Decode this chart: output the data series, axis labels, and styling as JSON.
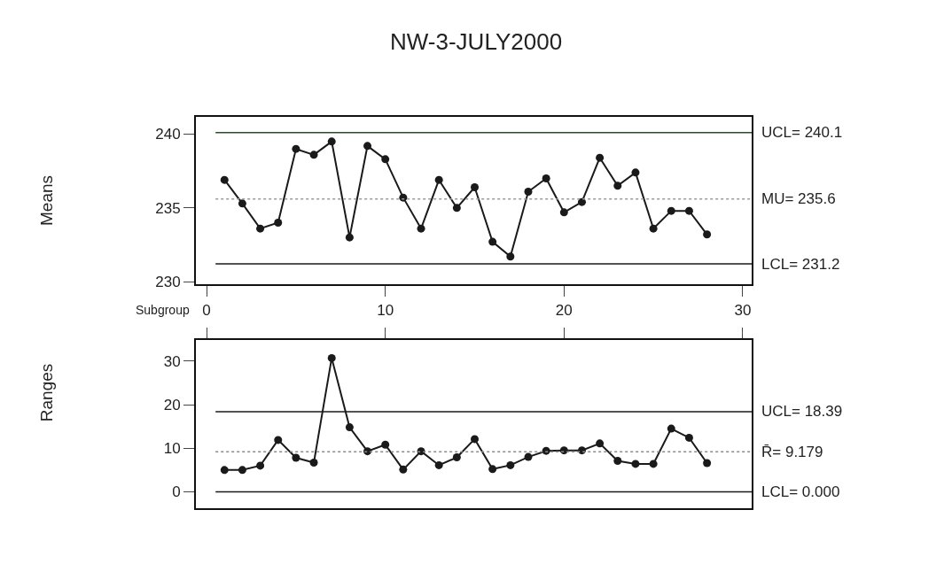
{
  "chart_data": [
    {
      "type": "line",
      "title": "NW-3-JULY2000",
      "xlabel": "Subgroup",
      "ylabel": "Means",
      "x": [
        1,
        2,
        3,
        4,
        5,
        6,
        7,
        8,
        9,
        10,
        11,
        12,
        13,
        14,
        15,
        16,
        17,
        18,
        19,
        20,
        21,
        22,
        23,
        24,
        25,
        26,
        27,
        28
      ],
      "series": [
        {
          "color": "#1a1a1a",
          "values": [
            236.9,
            235.3,
            233.6,
            234.0,
            239.0,
            238.6,
            239.5,
            233.0,
            239.2,
            238.3,
            235.7,
            233.6,
            236.9,
            235.0,
            236.4,
            232.7,
            231.7,
            236.1,
            237.0,
            234.7,
            235.4,
            238.4,
            236.5,
            237.4,
            233.6,
            234.8,
            234.8,
            233.2
          ]
        }
      ],
      "xlim": [
        -0.6,
        30.5
      ],
      "xticks": [
        0,
        10,
        20,
        30
      ],
      "ylim": [
        229.8,
        241.2
      ],
      "yticks": [
        230,
        235,
        240
      ],
      "ref_lines": [
        {
          "axis": "y",
          "value": 240.1,
          "label": "UCL= 240.1",
          "color": "#2e4a2e",
          "line_style": "solid"
        },
        {
          "axis": "y",
          "value": 235.6,
          "label": "MU= 235.6",
          "color": "#9a9a9a",
          "line_style": "dotted"
        },
        {
          "axis": "y",
          "value": 231.2,
          "label": "LCL= 231.2",
          "color": "#1a1a1a",
          "line_style": "solid"
        }
      ],
      "marker": "circle",
      "line_style": "solid"
    },
    {
      "type": "line",
      "ylabel": "Ranges",
      "x": [
        1,
        2,
        3,
        4,
        5,
        6,
        7,
        8,
        9,
        10,
        11,
        12,
        13,
        14,
        15,
        16,
        17,
        18,
        19,
        20,
        21,
        22,
        23,
        24,
        25,
        26,
        27,
        28
      ],
      "series": [
        {
          "color": "#1a1a1a",
          "values": [
            5.0,
            5.0,
            6.0,
            11.9,
            7.8,
            6.7,
            30.7,
            14.8,
            9.3,
            10.8,
            5.1,
            9.3,
            6.1,
            7.9,
            12.1,
            5.2,
            6.1,
            8.0,
            9.4,
            9.5,
            9.5,
            11.1,
            7.1,
            6.4,
            6.4,
            14.5,
            12.4,
            6.6
          ]
        }
      ],
      "xlim": [
        -0.6,
        30.5
      ],
      "xticks": [
        {
          "value": 0,
          "label": null
        },
        {
          "value": 10,
          "label": null
        },
        {
          "value": 20,
          "label": null
        },
        {
          "value": 30,
          "label": null
        }
      ],
      "ylim": [
        -3.7,
        34.9
      ],
      "yticks": [
        0,
        10,
        20,
        30
      ],
      "tick_labels": "y",
      "ref_lines": [
        {
          "axis": "y",
          "value": 18.39,
          "label": "UCL= 18.39",
          "color": "#1a1a1a",
          "line_style": "solid"
        },
        {
          "axis": "y",
          "value": 9.179,
          "label": "R̄= 9.179",
          "color": "#8a8a8a",
          "line_style": "dotted"
        },
        {
          "axis": "y",
          "value": 0.0,
          "label": "LCL= 0.000",
          "color": "#1a1a1a",
          "line_style": "solid"
        }
      ],
      "marker": "circle",
      "line_style": "solid"
    }
  ]
}
